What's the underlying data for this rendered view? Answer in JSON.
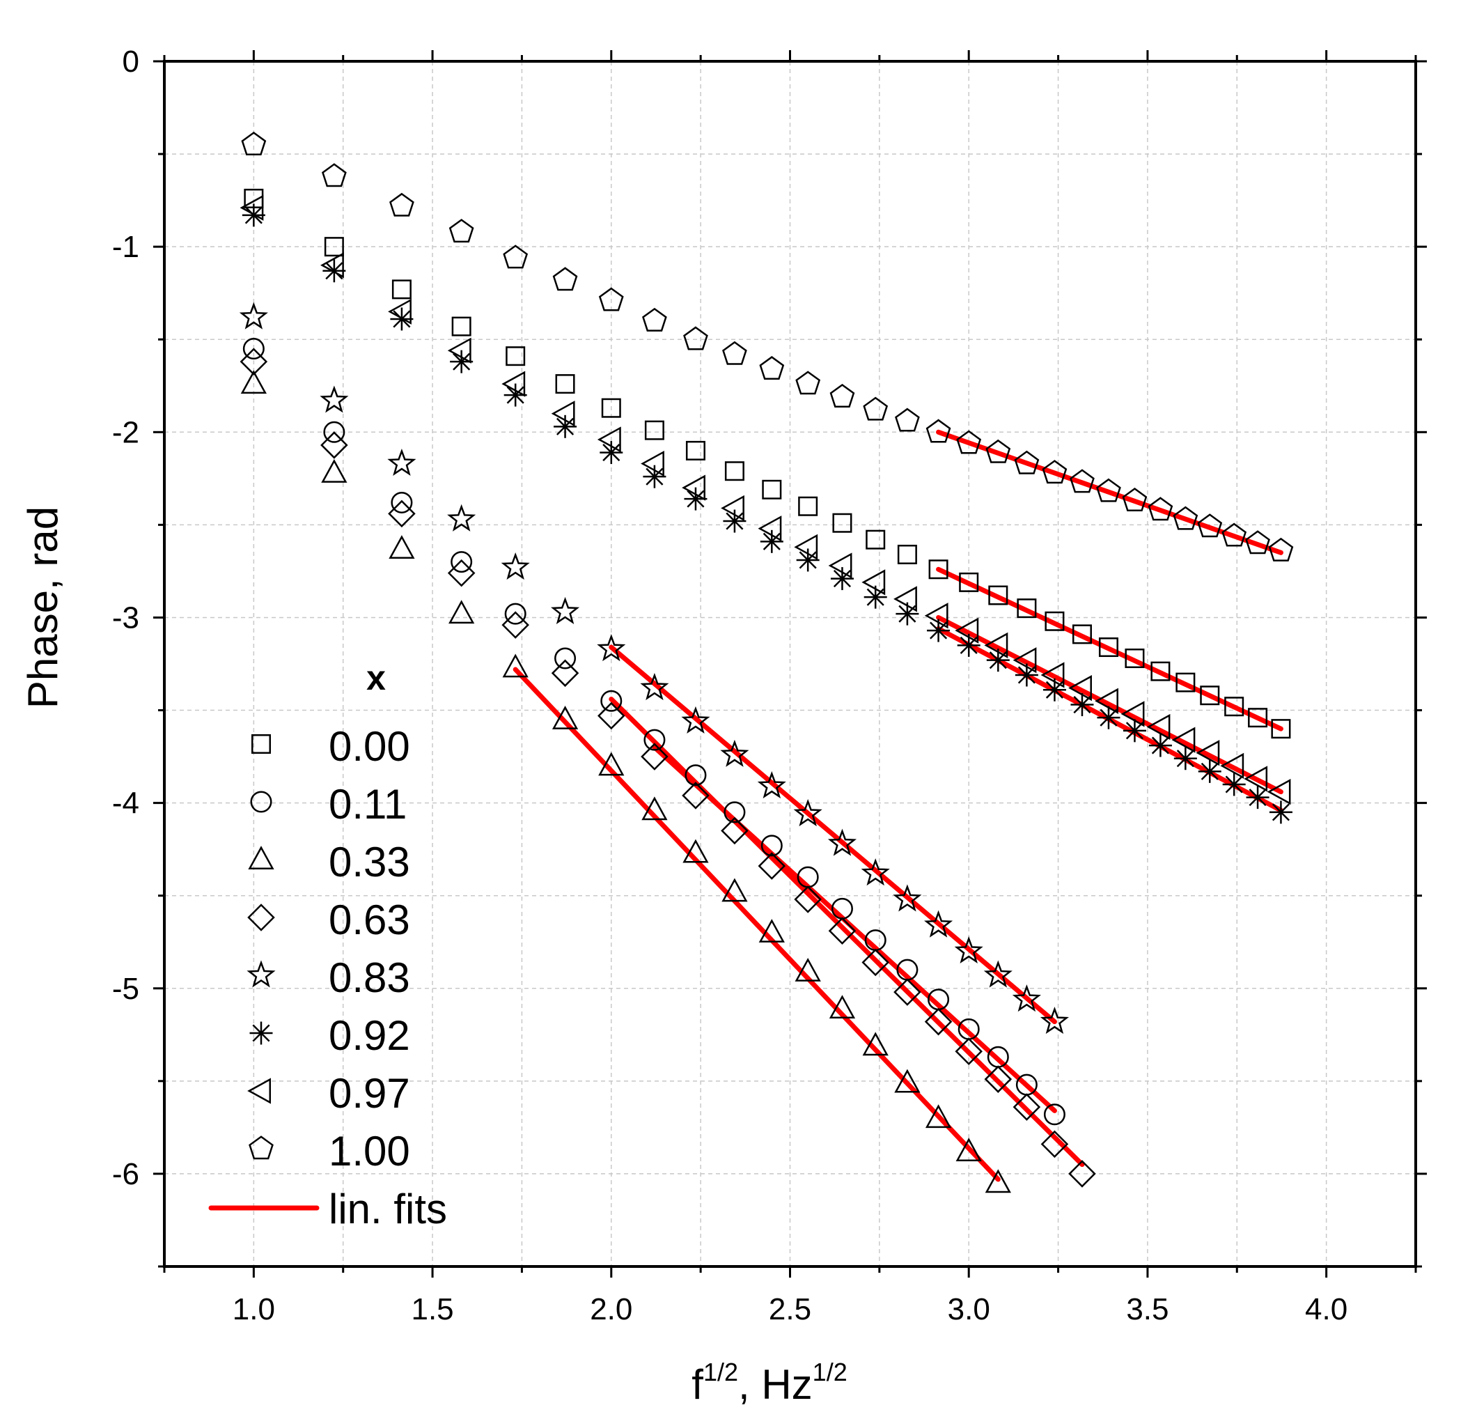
{
  "chart_data": {
    "type": "scatter",
    "title": "",
    "xlabel": "f",
    "xlabel_sup": "1/2",
    "xlabel_rest": ", Hz",
    "xlabel_rest_sup": "1/2",
    "ylabel": "Phase, rad",
    "xlim": [
      0.75,
      4.25
    ],
    "ylim": [
      -6.5,
      0
    ],
    "x_ticks": [
      1.0,
      1.5,
      2.0,
      2.5,
      3.0,
      3.5,
      4.0
    ],
    "x_tick_labels": [
      "1.0",
      "1.5",
      "2.0",
      "2.5",
      "3.0",
      "3.5",
      "4.0"
    ],
    "y_ticks": [
      0,
      -1,
      -2,
      -3,
      -4,
      -5,
      -6
    ],
    "y_tick_labels": [
      "0",
      "-1",
      "-2",
      "-3",
      "-4",
      "-5",
      "-6"
    ],
    "grid": true,
    "legend_title": "x",
    "legend_position": "bottom-left",
    "fit_label": "lin. fits",
    "fit_color": "#ff0000",
    "series": [
      {
        "name": "0.00",
        "marker": "square",
        "x": [
          1.0,
          1.225,
          1.414,
          1.581,
          1.732,
          1.871,
          2.0,
          2.121,
          2.236,
          2.345,
          2.449,
          2.55,
          2.646,
          2.739,
          2.828,
          2.915,
          3.0,
          3.082,
          3.162,
          3.24,
          3.317,
          3.391,
          3.464,
          3.536,
          3.606,
          3.674,
          3.742,
          3.808,
          3.873
        ],
        "y": [
          -0.74,
          -1.0,
          -1.23,
          -1.43,
          -1.59,
          -1.74,
          -1.87,
          -1.99,
          -2.1,
          -2.21,
          -2.31,
          -2.4,
          -2.49,
          -2.58,
          -2.66,
          -2.74,
          -2.81,
          -2.88,
          -2.95,
          -3.02,
          -3.09,
          -3.16,
          -3.22,
          -3.29,
          -3.35,
          -3.42,
          -3.48,
          -3.54,
          -3.6
        ],
        "fit": [
          [
            2.915,
            -2.74
          ],
          [
            3.873,
            -3.6
          ]
        ]
      },
      {
        "name": "0.11",
        "marker": "circle",
        "x": [
          1.0,
          1.225,
          1.414,
          1.581,
          1.732,
          1.871,
          2.0,
          2.121,
          2.236,
          2.345,
          2.449,
          2.55,
          2.646,
          2.739,
          2.828,
          2.915,
          3.0,
          3.082,
          3.162,
          3.24
        ],
        "y": [
          -1.55,
          -2.0,
          -2.38,
          -2.7,
          -2.98,
          -3.22,
          -3.45,
          -3.66,
          -3.85,
          -4.05,
          -4.23,
          -4.4,
          -4.57,
          -4.74,
          -4.9,
          -5.06,
          -5.22,
          -5.37,
          -5.52,
          -5.68
        ],
        "fit": [
          [
            2.121,
            -3.7
          ],
          [
            3.24,
            -5.66
          ]
        ]
      },
      {
        "name": "0.33",
        "marker": "triangle",
        "x": [
          1.0,
          1.225,
          1.414,
          1.581,
          1.732,
          1.871,
          2.0,
          2.121,
          2.236,
          2.345,
          2.449,
          2.55,
          2.646,
          2.739,
          2.828,
          2.915,
          3.0,
          3.082
        ],
        "y": [
          -1.74,
          -2.22,
          -2.63,
          -2.98,
          -3.27,
          -3.55,
          -3.8,
          -4.04,
          -4.27,
          -4.48,
          -4.7,
          -4.91,
          -5.11,
          -5.31,
          -5.51,
          -5.7,
          -5.88,
          -6.05
        ],
        "fit": [
          [
            1.732,
            -3.28
          ],
          [
            3.082,
            -6.03
          ]
        ]
      },
      {
        "name": "0.63",
        "marker": "diamond",
        "x": [
          1.0,
          1.225,
          1.414,
          1.581,
          1.732,
          1.871,
          2.0,
          2.121,
          2.236,
          2.345,
          2.449,
          2.55,
          2.646,
          2.739,
          2.828,
          2.915,
          3.0,
          3.082,
          3.162,
          3.24,
          3.317
        ],
        "y": [
          -1.62,
          -2.07,
          -2.44,
          -2.76,
          -3.04,
          -3.3,
          -3.53,
          -3.75,
          -3.96,
          -4.15,
          -4.34,
          -4.52,
          -4.69,
          -4.86,
          -5.02,
          -5.18,
          -5.34,
          -5.49,
          -5.64,
          -5.84,
          -6.0
        ],
        "fit": [
          [
            2.0,
            -3.44
          ],
          [
            3.317,
            -5.95
          ]
        ]
      },
      {
        "name": "0.83",
        "marker": "star",
        "x": [
          1.0,
          1.225,
          1.414,
          1.581,
          1.732,
          1.871,
          2.0,
          2.121,
          2.236,
          2.345,
          2.449,
          2.55,
          2.646,
          2.739,
          2.828,
          2.915,
          3.0,
          3.082,
          3.162,
          3.24
        ],
        "y": [
          -1.38,
          -1.83,
          -2.17,
          -2.47,
          -2.73,
          -2.97,
          -3.17,
          -3.38,
          -3.56,
          -3.74,
          -3.91,
          -4.06,
          -4.22,
          -4.38,
          -4.52,
          -4.66,
          -4.8,
          -4.93,
          -5.06,
          -5.18
        ],
        "fit": [
          [
            2.0,
            -3.16
          ],
          [
            3.24,
            -5.18
          ]
        ]
      },
      {
        "name": "0.92",
        "marker": "asterisk",
        "x": [
          1.0,
          1.225,
          1.414,
          1.581,
          1.732,
          1.871,
          2.0,
          2.121,
          2.236,
          2.345,
          2.449,
          2.55,
          2.646,
          2.739,
          2.828,
          2.915,
          3.0,
          3.082,
          3.162,
          3.24,
          3.317,
          3.391,
          3.464,
          3.536,
          3.606,
          3.674,
          3.742,
          3.808,
          3.873
        ],
        "y": [
          -0.83,
          -1.13,
          -1.39,
          -1.62,
          -1.8,
          -1.97,
          -2.11,
          -2.24,
          -2.36,
          -2.48,
          -2.59,
          -2.69,
          -2.79,
          -2.89,
          -2.98,
          -3.07,
          -3.15,
          -3.23,
          -3.31,
          -3.39,
          -3.47,
          -3.54,
          -3.61,
          -3.69,
          -3.76,
          -3.83,
          -3.9,
          -3.97,
          -4.05
        ],
        "fit": [
          [
            2.915,
            -3.06
          ],
          [
            3.873,
            -4.04
          ]
        ]
      },
      {
        "name": "0.97",
        "marker": "triangle-left",
        "x": [
          1.0,
          1.225,
          1.414,
          1.581,
          1.732,
          1.871,
          2.0,
          2.121,
          2.236,
          2.345,
          2.449,
          2.55,
          2.646,
          2.739,
          2.828,
          2.915,
          3.0,
          3.082,
          3.162,
          3.24,
          3.317,
          3.391,
          3.464,
          3.536,
          3.606,
          3.674,
          3.742,
          3.808,
          3.873
        ],
        "y": [
          -0.79,
          -1.1,
          -1.35,
          -1.56,
          -1.74,
          -1.9,
          -2.04,
          -2.17,
          -2.3,
          -2.41,
          -2.52,
          -2.62,
          -2.72,
          -2.81,
          -2.9,
          -2.99,
          -3.07,
          -3.15,
          -3.23,
          -3.31,
          -3.38,
          -3.45,
          -3.52,
          -3.59,
          -3.66,
          -3.73,
          -3.8,
          -3.87,
          -3.94
        ],
        "fit": [
          [
            2.915,
            -3.0
          ],
          [
            3.873,
            -3.94
          ]
        ]
      },
      {
        "name": "1.00",
        "marker": "pentagon",
        "x": [
          1.0,
          1.225,
          1.414,
          1.581,
          1.732,
          1.871,
          2.0,
          2.121,
          2.236,
          2.345,
          2.449,
          2.55,
          2.646,
          2.739,
          2.828,
          2.915,
          3.0,
          3.082,
          3.162,
          3.24,
          3.317,
          3.391,
          3.464,
          3.536,
          3.606,
          3.674,
          3.742,
          3.808,
          3.873
        ],
        "y": [
          -0.45,
          -0.62,
          -0.78,
          -0.92,
          -1.06,
          -1.18,
          -1.29,
          -1.4,
          -1.5,
          -1.58,
          -1.66,
          -1.74,
          -1.81,
          -1.88,
          -1.94,
          -2.0,
          -2.06,
          -2.11,
          -2.17,
          -2.22,
          -2.27,
          -2.32,
          -2.37,
          -2.42,
          -2.47,
          -2.51,
          -2.56,
          -2.6,
          -2.64
        ],
        "fit": [
          [
            2.915,
            -2.0
          ],
          [
            3.873,
            -2.65
          ]
        ]
      }
    ]
  }
}
